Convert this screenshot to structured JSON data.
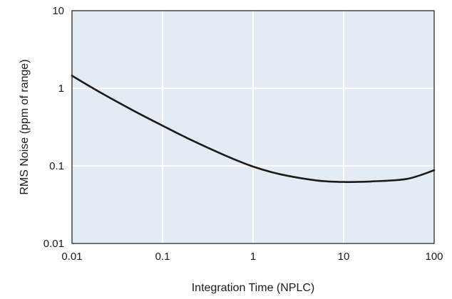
{
  "chart_data": {
    "type": "line",
    "title": "",
    "xlabel": "Integration Time (NPLC)",
    "ylabel": "RMS Noise (ppm of range)",
    "x_scale": "log",
    "y_scale": "log",
    "xlim": [
      0.01,
      100
    ],
    "ylim": [
      0.01,
      10
    ],
    "x_ticks": [
      "0.01",
      "0.1",
      "1",
      "10",
      "100"
    ],
    "y_ticks": [
      "10",
      "1",
      "0.1",
      "0.01"
    ],
    "grid": true,
    "legend": "none",
    "colors": {
      "plot_bg": "#e3ebf4",
      "grid": "#ffffff",
      "line": "#1a1a1a",
      "frame": "#1a1a1a"
    },
    "series": [
      {
        "x": [
          0.01,
          0.02,
          0.05,
          0.1,
          0.2,
          0.5,
          1,
          2,
          5,
          10,
          20,
          50,
          100
        ],
        "y": [
          1.45,
          0.9,
          0.5,
          0.33,
          0.22,
          0.135,
          0.098,
          0.078,
          0.065,
          0.062,
          0.063,
          0.068,
          0.088
        ]
      }
    ]
  }
}
